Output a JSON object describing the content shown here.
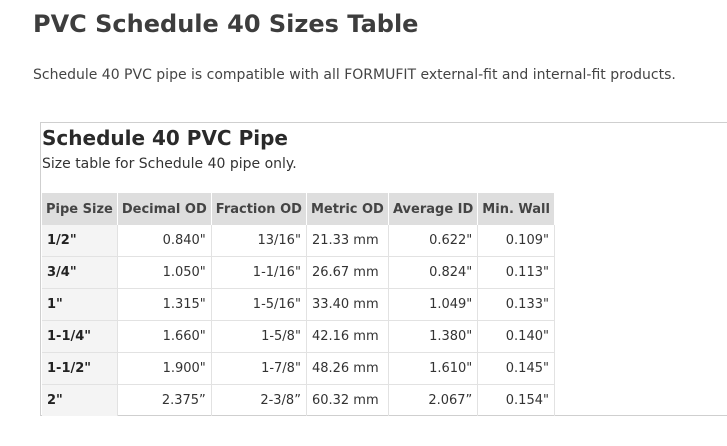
{
  "page": {
    "title": "PVC Schedule 40 Sizes Table",
    "intro": "Schedule 40 PVC pipe is compatible with all FORMUFIT external-fit and internal-fit products."
  },
  "table": {
    "title": "Schedule 40 PVC Pipe",
    "caption": "Size table for Schedule 40 pipe only.",
    "headers": [
      "Pipe Size",
      "Decimal OD",
      "Fraction OD",
      "Metric OD",
      "Average ID",
      "Min. Wall"
    ],
    "rows": [
      [
        "1/2\"",
        "0.840\"",
        "13/16\"",
        "21.33 mm",
        "0.622\"",
        "0.109\""
      ],
      [
        "3/4\"",
        "1.050\"",
        "1-1/16\"",
        "26.67 mm",
        "0.824\"",
        "0.113\""
      ],
      [
        "1\"",
        "1.315\"",
        "1-5/16\"",
        "33.40 mm",
        "1.049\"",
        "0.133\""
      ],
      [
        "1-1/4\"",
        "1.660\"",
        "1-5/8\"",
        "42.16 mm",
        "1.380\"",
        "0.140\""
      ],
      [
        "1-1/2\"",
        "1.900\"",
        "1-7/8\"",
        "48.26 mm",
        "1.610\"",
        "0.145\""
      ],
      [
        "2\"",
        "2.375”",
        "2-3/8”",
        "60.32 mm",
        "2.067”",
        "0.154\""
      ]
    ]
  },
  "colors": {
    "header_bg": "#dedede",
    "size_cell_bg": "#f4f4f4",
    "border": "#e2e2e2"
  }
}
